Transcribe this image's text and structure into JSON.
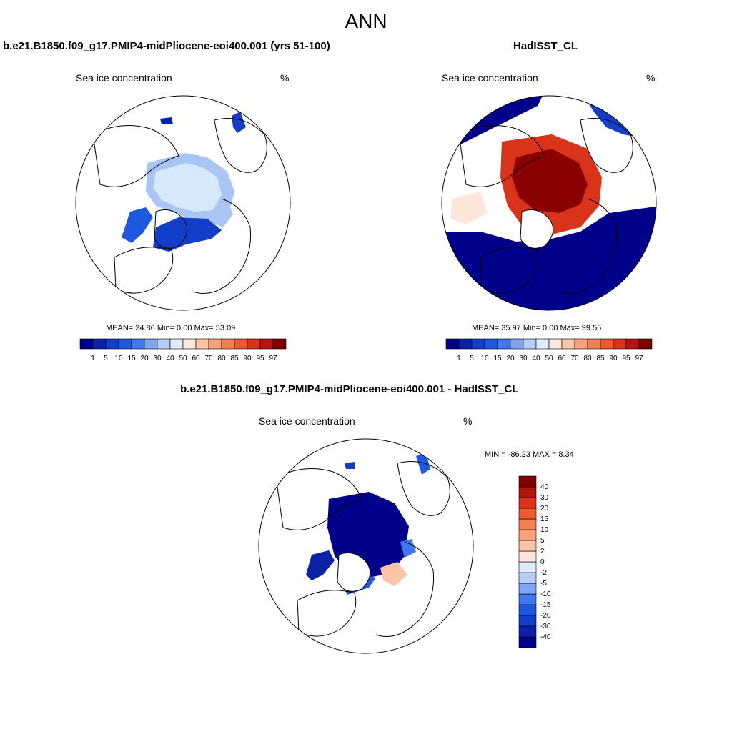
{
  "figure": {
    "title": "ANN"
  },
  "palettes": {
    "abs": [
      "#00008b",
      "#0a22a8",
      "#123ec8",
      "#1f58e0",
      "#3f78f0",
      "#7fa6f2",
      "#b7cdf6",
      "#deebfb",
      "#fde6da",
      "#fbc6a8",
      "#f8a27c",
      "#f57f55",
      "#ee5a2f",
      "#d9331a",
      "#b31510",
      "#7f0000"
    ],
    "diff": [
      "#00008b",
      "#0a22a8",
      "#123ec8",
      "#1f58e0",
      "#3f78f0",
      "#7fa6f2",
      "#b7cdf6",
      "#deebfb",
      "#fde6da",
      "#fbc6a8",
      "#f8a27c",
      "#f57f55",
      "#ee5a2f",
      "#d9331a",
      "#b31510",
      "#7f0000"
    ],
    "land_line": "#000000",
    "ice_model_core": "#d8e8fb",
    "ice_model_edge": "#a9c5f5",
    "ice_obs_core": "#8b0000",
    "ice_obs_mid": "#d9331a",
    "ice_obs_edge": "#f8a27c",
    "open_ocean": "#00008b"
  },
  "panels": [
    {
      "id": "model",
      "title": "b.e21.B1850.f09_g17.PMIP4-midPliocene-eoi400.001 (yrs 51-100)",
      "variable": "Sea ice concentration",
      "units": "%",
      "stats": "MEAN=  24.86  Min=   0.00  Max=  53.09"
    },
    {
      "id": "obs",
      "title": "HadISST_CL",
      "variable": "Sea ice concentration",
      "units": "%",
      "stats": "MEAN=  35.97  Min=   0.00  Max=  99.55"
    },
    {
      "id": "diff",
      "title": "b.e21.B1850.f09_g17.PMIP4-midPliocene-eoi400.001 - HadISST_CL",
      "variable": "Sea ice concentration",
      "units": "%",
      "stats": "MIN = -86.23 MAX =   8.34"
    }
  ],
  "chart_data": [
    {
      "type": "heatmap",
      "projection": "north polar stereographic",
      "title": "b.e21.B1850.f09_g17.PMIP4-midPliocene-eoi400.001 (yrs 51-100)",
      "variable": "Sea ice concentration",
      "units": "%",
      "mean": 24.86,
      "min": 0.0,
      "max": 53.09,
      "colorbar_ticks": [
        "1",
        "5",
        "10",
        "15",
        "20",
        "30",
        "40",
        "50",
        "60",
        "70",
        "80",
        "85",
        "90",
        "95",
        "97"
      ]
    },
    {
      "type": "heatmap",
      "projection": "north polar stereographic",
      "title": "HadISST_CL",
      "variable": "Sea ice concentration",
      "units": "%",
      "mean": 35.97,
      "min": 0.0,
      "max": 99.55,
      "colorbar_ticks": [
        "1",
        "5",
        "10",
        "15",
        "20",
        "30",
        "40",
        "50",
        "60",
        "70",
        "80",
        "85",
        "90",
        "95",
        "97"
      ]
    },
    {
      "type": "heatmap",
      "projection": "north polar stereographic",
      "title": "b.e21.B1850.f09_g17.PMIP4-midPliocene-eoi400.001 - HadISST_CL",
      "variable": "Sea ice concentration",
      "units": "%",
      "min": -86.23,
      "max": 8.34,
      "colorbar_ticks": [
        "-40",
        "-30",
        "-20",
        "-15",
        "-10",
        "-5",
        "-2",
        "0",
        "2",
        "5",
        "10",
        "15",
        "20",
        "30",
        "40"
      ]
    }
  ]
}
